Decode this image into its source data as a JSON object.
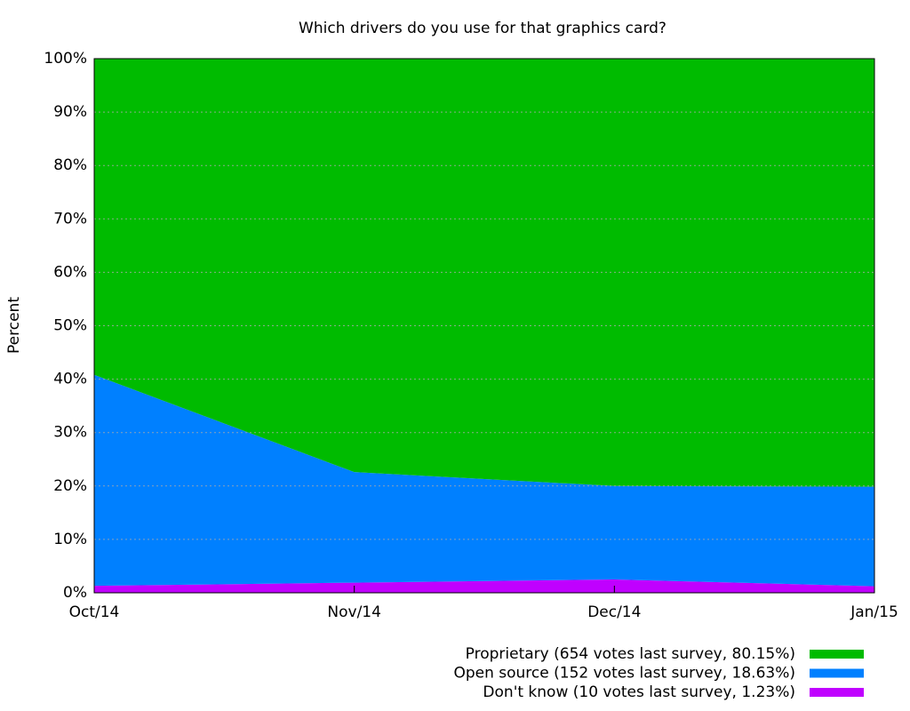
{
  "chart_data": {
    "type": "stacked-area",
    "title": "Which drivers do you use for that graphics card?",
    "y_label": "Percent",
    "categories": [
      "Oct/14",
      "Nov/14",
      "Dec/14",
      "Jan/15"
    ],
    "series": [
      {
        "name": "Proprietary (654 votes last survey, 80.15%)",
        "color": "#00bb00",
        "values": [
          59.2,
          77.4,
          80.0,
          80.15
        ]
      },
      {
        "name": "Open source (152 votes last survey, 18.63%)",
        "color": "#0080ff",
        "values": [
          39.5,
          20.7,
          17.5,
          18.63
        ]
      },
      {
        "name": "Don't know (10 votes last survey, 1.23%)",
        "color": "#c000ff",
        "values": [
          1.3,
          1.9,
          2.5,
          1.23
        ]
      }
    ],
    "ylim": [
      0,
      100
    ],
    "yticks": [
      {
        "value": 0,
        "label": "0%"
      },
      {
        "value": 10,
        "label": "10%"
      },
      {
        "value": 20,
        "label": "20%"
      },
      {
        "value": 30,
        "label": "30%"
      },
      {
        "value": 40,
        "label": "40%"
      },
      {
        "value": 50,
        "label": "50%"
      },
      {
        "value": 60,
        "label": "60%"
      },
      {
        "value": 70,
        "label": "70%"
      },
      {
        "value": 80,
        "label": "80%"
      },
      {
        "value": 90,
        "label": "90%"
      },
      {
        "value": 100,
        "label": "100%"
      }
    ],
    "grid": true,
    "legend": "bottom-right"
  }
}
